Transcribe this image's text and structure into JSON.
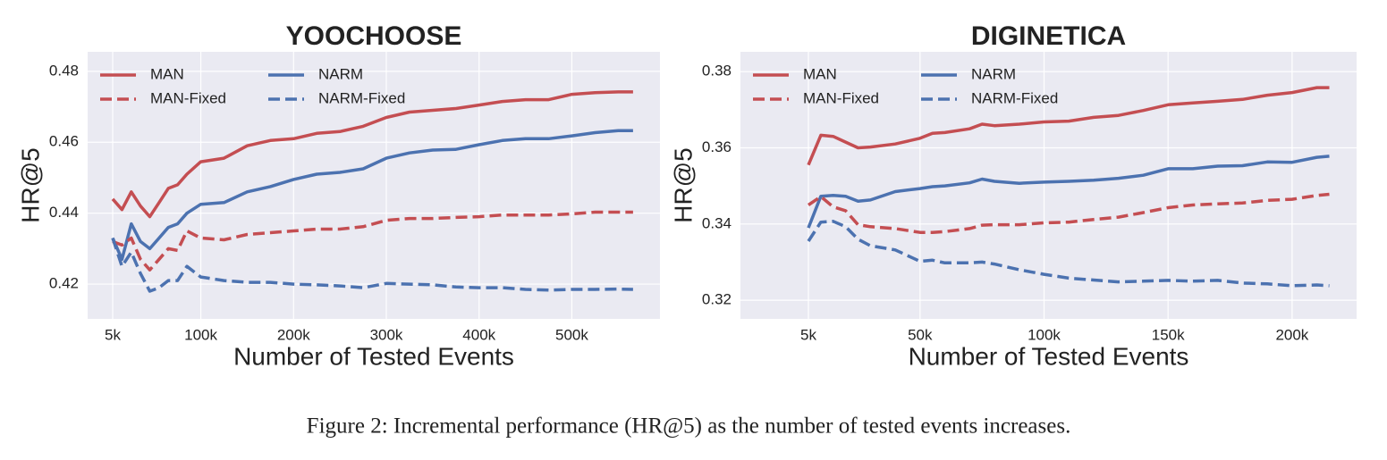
{
  "chart_data": [
    {
      "type": "line",
      "title": "YOOCHOOSE",
      "x_label": "Number of Tested Events",
      "y_label": "HR@5",
      "x": [
        5000,
        15000,
        25000,
        35000,
        45000,
        55000,
        65000,
        75000,
        85000,
        100000,
        125000,
        150000,
        175000,
        200000,
        225000,
        250000,
        275000,
        300000,
        325000,
        350000,
        375000,
        400000,
        425000,
        450000,
        475000,
        500000,
        525000,
        550000,
        566000
      ],
      "series": [
        {
          "name": "MAN",
          "color": "#c44e52",
          "linestyle": "solid",
          "values": [
            0.444,
            0.441,
            0.446,
            0.442,
            0.439,
            0.443,
            0.447,
            0.448,
            0.451,
            0.4545,
            0.4555,
            0.459,
            0.4605,
            0.461,
            0.4625,
            0.463,
            0.4645,
            0.467,
            0.4685,
            0.469,
            0.4695,
            0.4705,
            0.4715,
            0.472,
            0.472,
            0.4735,
            0.474,
            0.4742,
            0.4742
          ]
        },
        {
          "name": "NARM",
          "color": "#4c72b0",
          "linestyle": "solid",
          "values": [
            0.433,
            0.427,
            0.437,
            0.432,
            0.43,
            0.433,
            0.436,
            0.437,
            0.44,
            0.4425,
            0.443,
            0.446,
            0.4475,
            0.4495,
            0.451,
            0.4515,
            0.4525,
            0.4555,
            0.457,
            0.4578,
            0.458,
            0.4593,
            0.4605,
            0.461,
            0.461,
            0.4618,
            0.4627,
            0.4633,
            0.4633
          ]
        },
        {
          "name": "MAN-Fixed",
          "color": "#c44e52",
          "linestyle": "dashed",
          "values": [
            0.432,
            0.431,
            0.433,
            0.427,
            0.424,
            0.427,
            0.43,
            0.4295,
            0.435,
            0.433,
            0.4325,
            0.434,
            0.4345,
            0.435,
            0.4355,
            0.4355,
            0.4362,
            0.438,
            0.4385,
            0.4385,
            0.4388,
            0.439,
            0.4395,
            0.4395,
            0.4395,
            0.4398,
            0.4403,
            0.4403,
            0.4403
          ]
        },
        {
          "name": "NARM-Fixed",
          "color": "#4c72b0",
          "linestyle": "dashed",
          "values": [
            0.433,
            0.425,
            0.429,
            0.423,
            0.418,
            0.419,
            0.421,
            0.421,
            0.425,
            0.422,
            0.421,
            0.4205,
            0.4205,
            0.42,
            0.4198,
            0.4195,
            0.419,
            0.4202,
            0.42,
            0.4198,
            0.4192,
            0.419,
            0.419,
            0.4185,
            0.4183,
            0.4185,
            0.4185,
            0.4186,
            0.4185
          ]
        }
      ],
      "xlim": [
        -22000,
        595000
      ],
      "ylim": [
        0.4102,
        0.4855
      ],
      "xticks": [
        {
          "value": 5000,
          "label": "5k"
        },
        {
          "value": 100000,
          "label": "100k"
        },
        {
          "value": 200000,
          "label": "200k"
        },
        {
          "value": 300000,
          "label": "300k"
        },
        {
          "value": 400000,
          "label": "400k"
        },
        {
          "value": 500000,
          "label": "500k"
        }
      ],
      "yticks": [
        0.42,
        0.44,
        0.46,
        0.48
      ],
      "grid": true,
      "legend": "upper left",
      "background": "#eaeaf2"
    },
    {
      "type": "line",
      "title": "DIGINETICA",
      "x_label": "Number of Tested Events",
      "y_label": "HR@5",
      "x": [
        5000,
        10000,
        15000,
        20000,
        25000,
        30000,
        40000,
        50000,
        55000,
        60000,
        70000,
        75000,
        80000,
        90000,
        100000,
        110000,
        120000,
        130000,
        140000,
        150000,
        160000,
        170000,
        180000,
        190000,
        200000,
        210000,
        215000
      ],
      "series": [
        {
          "name": "MAN",
          "color": "#c44e52",
          "linestyle": "solid",
          "values": [
            0.3555,
            0.3633,
            0.363,
            0.3615,
            0.36,
            0.3602,
            0.361,
            0.3625,
            0.3638,
            0.364,
            0.365,
            0.3662,
            0.3658,
            0.3662,
            0.3668,
            0.367,
            0.368,
            0.3685,
            0.3698,
            0.3713,
            0.3718,
            0.3722,
            0.3727,
            0.3738,
            0.3745,
            0.3758,
            0.3758
          ]
        },
        {
          "name": "NARM",
          "color": "#4c72b0",
          "linestyle": "solid",
          "values": [
            0.339,
            0.3473,
            0.3475,
            0.3473,
            0.346,
            0.3463,
            0.3485,
            0.3493,
            0.3498,
            0.35,
            0.3508,
            0.3518,
            0.3512,
            0.3507,
            0.351,
            0.3512,
            0.3515,
            0.352,
            0.3528,
            0.3545,
            0.3545,
            0.3552,
            0.3553,
            0.3563,
            0.3562,
            0.3575,
            0.3578
          ]
        },
        {
          "name": "MAN-Fixed",
          "color": "#c44e52",
          "linestyle": "dashed",
          "values": [
            0.345,
            0.3472,
            0.3445,
            0.3435,
            0.3398,
            0.3393,
            0.3388,
            0.3378,
            0.3378,
            0.338,
            0.3388,
            0.3397,
            0.3398,
            0.3398,
            0.3403,
            0.3405,
            0.3412,
            0.3418,
            0.343,
            0.3443,
            0.345,
            0.3453,
            0.3455,
            0.3462,
            0.3465,
            0.3475,
            0.3478
          ]
        },
        {
          "name": "NARM-Fixed",
          "color": "#4c72b0",
          "linestyle": "dashed",
          "values": [
            0.3355,
            0.3405,
            0.3407,
            0.3393,
            0.336,
            0.3343,
            0.3332,
            0.3302,
            0.3305,
            0.3298,
            0.3298,
            0.33,
            0.3295,
            0.328,
            0.3268,
            0.3258,
            0.3253,
            0.3248,
            0.325,
            0.3252,
            0.325,
            0.3252,
            0.3245,
            0.3243,
            0.3238,
            0.324,
            0.3238
          ]
        }
      ],
      "xlim": [
        -22400,
        226000
      ],
      "ylim": [
        0.3151,
        0.3852
      ],
      "xticks": [
        {
          "value": 5000,
          "label": "5k"
        },
        {
          "value": 50000,
          "label": "50k"
        },
        {
          "value": 100000,
          "label": "100k"
        },
        {
          "value": 150000,
          "label": "150k"
        },
        {
          "value": 200000,
          "label": "200k"
        }
      ],
      "yticks": [
        0.32,
        0.34,
        0.36,
        0.38
      ],
      "grid": true,
      "legend": "upper left",
      "background": "#eaeaf2"
    }
  ],
  "caption": "Figure 2: Incremental performance (HR@5) as the number of tested events increases."
}
